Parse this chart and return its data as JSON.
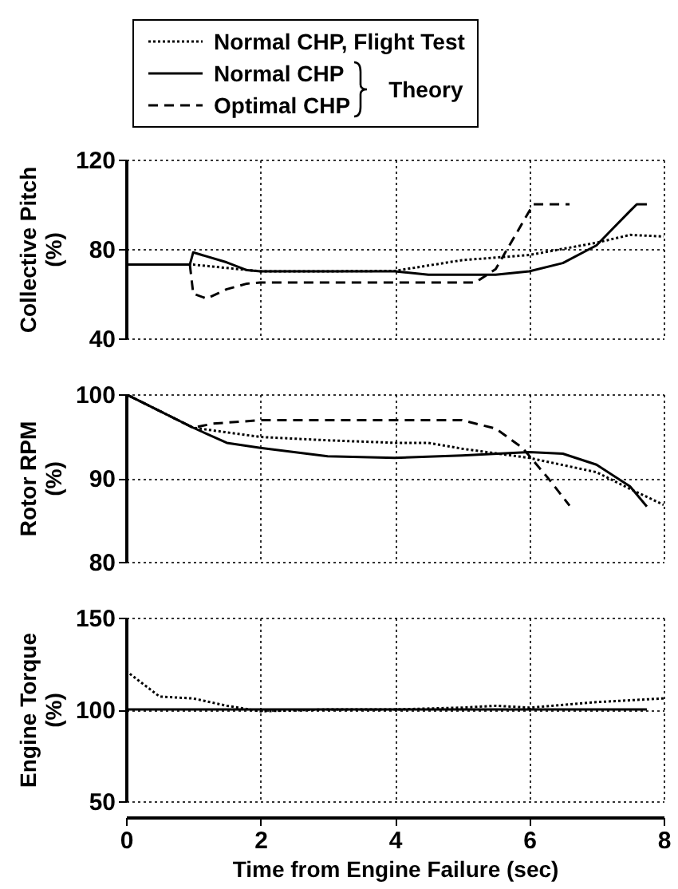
{
  "chart_data": [
    {
      "type": "line",
      "ylabel": "Collective Pitch (%)",
      "xlim": [
        0,
        8
      ],
      "xticks": [
        0,
        2,
        4,
        6,
        8
      ],
      "ylim": [
        40,
        120
      ],
      "yticks": [
        40,
        80,
        120
      ],
      "grid": true,
      "legend": "top",
      "tick_labels": "y",
      "annotations": [
        "Theory"
      ],
      "series": [
        {
          "name": "Normal CHP, Flight Test",
          "color": "#000000",
          "line_style": "dotted",
          "x": [
            0,
            1,
            1.5,
            2,
            3,
            4,
            5,
            6,
            7,
            7.5,
            8
          ],
          "values": [
            73,
            73,
            71.5,
            70,
            70,
            70.2,
            75,
            77.3,
            82.8,
            86.3,
            85.6
          ]
        },
        {
          "name": "Normal CHP",
          "color": "#000000",
          "line_style": "solid",
          "x": [
            0,
            0.95,
            1,
            1.5,
            1.8,
            2,
            4,
            4.5,
            5.5,
            6,
            6.5,
            7,
            7.5,
            7.6,
            7.75
          ],
          "values": [
            73,
            73,
            78.5,
            74,
            70.5,
            70,
            70,
            68.5,
            68.5,
            70,
            73.7,
            81.6,
            97,
            100,
            100
          ]
        },
        {
          "name": "Optimal CHP",
          "color": "#000000",
          "line_style": "dashed",
          "x": [
            0,
            0.95,
            1,
            1.2,
            1.5,
            1.8,
            2,
            5.2,
            5.5,
            6.06,
            6.6
          ],
          "values": [
            73,
            73,
            60,
            57.8,
            62,
            64.5,
            65,
            65,
            71,
            100,
            100
          ]
        }
      ]
    },
    {
      "type": "line",
      "ylabel": "Rotor RPM (%)",
      "xlim": [
        0,
        8
      ],
      "xticks": [
        0,
        2,
        4,
        6,
        8
      ],
      "ylim": [
        80,
        100
      ],
      "yticks": [
        80,
        90,
        100
      ],
      "grid": true,
      "tick_labels": "y",
      "series": [
        {
          "color": "#000000",
          "line_style": "dotted",
          "x": [
            0,
            1,
            2,
            3,
            4,
            4.5,
            5,
            6,
            7,
            7.5,
            8
          ],
          "values": [
            100,
            96,
            94.9,
            94.5,
            94.2,
            94.2,
            93.5,
            92.4,
            90.7,
            88.7,
            86.8
          ]
        },
        {
          "color": "#000000",
          "line_style": "solid",
          "x": [
            0,
            1,
            1.5,
            2,
            3,
            4,
            5,
            6,
            6.5,
            7,
            7.5,
            7.75
          ],
          "values": [
            100,
            96,
            94.2,
            93.6,
            92.6,
            92.4,
            92.7,
            93.1,
            92.9,
            91.6,
            89,
            86.6
          ]
        },
        {
          "color": "#000000",
          "line_style": "dashed",
          "x": [
            0,
            1,
            1.3,
            2,
            5,
            5.5,
            5.9,
            6.3,
            6.6
          ],
          "values": [
            100,
            96,
            96.5,
            96.9,
            96.9,
            95.9,
            93.6,
            89.8,
            86.7
          ]
        }
      ]
    },
    {
      "type": "line",
      "xlabel": "Time from Engine Failure (sec)",
      "ylabel": "Engine Torque (%)",
      "xlim": [
        0,
        8
      ],
      "xticks": [
        0,
        2,
        4,
        6,
        8
      ],
      "ylim": [
        50,
        150
      ],
      "yticks": [
        50,
        100,
        150
      ],
      "grid": true,
      "series": [
        {
          "color": "#000000",
          "line_style": "dotted",
          "x": [
            0,
            0.5,
            1,
            1.5,
            2,
            3,
            4,
            5,
            5.5,
            6,
            7,
            8
          ],
          "values": [
            121,
            107,
            106,
            102,
            99,
            100,
            100,
            101,
            102,
            101,
            104,
            106
          ]
        },
        {
          "color": "#000000",
          "line_style": "solid",
          "x": [
            0,
            7.75
          ],
          "values": [
            100,
            100
          ]
        }
      ]
    }
  ]
}
